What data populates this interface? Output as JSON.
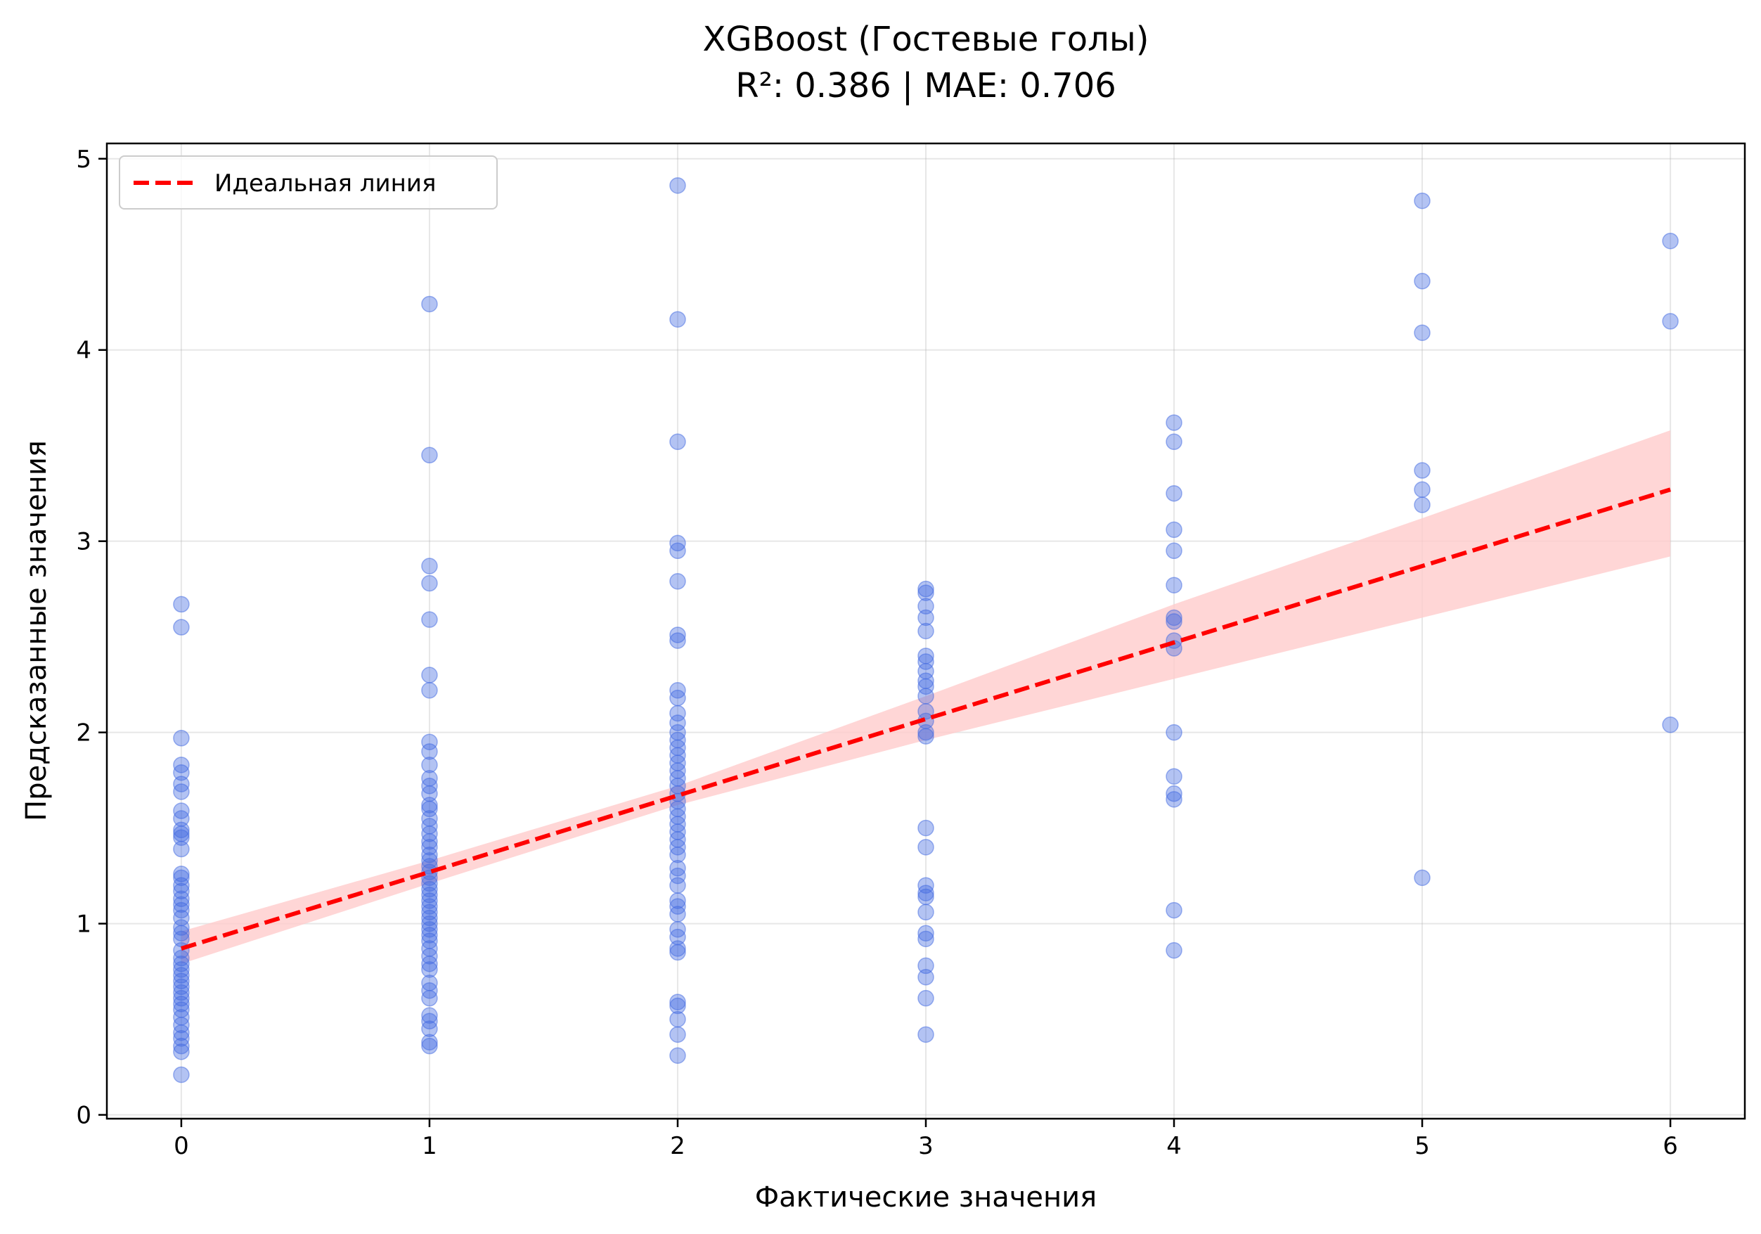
{
  "chart_data": {
    "type": "scatter",
    "title": "XGBoost (Гостевые голы)",
    "subtitle": "R²: 0.386 | MAE: 0.706",
    "xlabel": "Фактические значения",
    "ylabel": "Предсказанные значения",
    "xlim": [
      -0.3,
      6.3
    ],
    "ylim": [
      -0.02,
      5.08
    ],
    "x_ticks": [
      0,
      1,
      2,
      3,
      4,
      5,
      6
    ],
    "y_ticks": [
      0,
      1,
      2,
      3,
      4,
      5
    ],
    "grid": true,
    "legend": {
      "position": "top-left",
      "entries": [
        "Идеальная линия"
      ]
    },
    "colors": {
      "points": "#4169e1",
      "line": "#ff0000",
      "band": "#ffcccc"
    },
    "series": [
      {
        "type": "scatter",
        "points": [
          [
            0,
            2.67
          ],
          [
            0,
            2.55
          ],
          [
            0,
            1.97
          ],
          [
            0,
            1.83
          ],
          [
            0,
            1.79
          ],
          [
            0,
            1.73
          ],
          [
            0,
            1.69
          ],
          [
            0,
            1.59
          ],
          [
            0,
            1.55
          ],
          [
            0,
            1.49
          ],
          [
            0,
            1.47
          ],
          [
            0,
            1.45
          ],
          [
            0,
            1.39
          ],
          [
            0,
            1.26
          ],
          [
            0,
            1.24
          ],
          [
            0,
            1.2
          ],
          [
            0,
            1.17
          ],
          [
            0,
            1.13
          ],
          [
            0,
            1.1
          ],
          [
            0,
            1.07
          ],
          [
            0,
            1.03
          ],
          [
            0,
            0.98
          ],
          [
            0,
            0.95
          ],
          [
            0,
            0.92
          ],
          [
            0,
            0.86
          ],
          [
            0,
            0.82
          ],
          [
            0,
            0.79
          ],
          [
            0,
            0.76
          ],
          [
            0,
            0.73
          ],
          [
            0,
            0.7
          ],
          [
            0,
            0.67
          ],
          [
            0,
            0.64
          ],
          [
            0,
            0.61
          ],
          [
            0,
            0.58
          ],
          [
            0,
            0.55
          ],
          [
            0,
            0.51
          ],
          [
            0,
            0.47
          ],
          [
            0,
            0.43
          ],
          [
            0,
            0.4
          ],
          [
            0,
            0.36
          ],
          [
            0,
            0.33
          ],
          [
            0,
            0.21
          ],
          [
            1,
            4.24
          ],
          [
            1,
            3.45
          ],
          [
            1,
            2.87
          ],
          [
            1,
            2.78
          ],
          [
            1,
            2.59
          ],
          [
            1,
            2.3
          ],
          [
            1,
            2.22
          ],
          [
            1,
            1.95
          ],
          [
            1,
            1.9
          ],
          [
            1,
            1.83
          ],
          [
            1,
            1.76
          ],
          [
            1,
            1.72
          ],
          [
            1,
            1.68
          ],
          [
            1,
            1.62
          ],
          [
            1,
            1.6
          ],
          [
            1,
            1.55
          ],
          [
            1,
            1.51
          ],
          [
            1,
            1.47
          ],
          [
            1,
            1.43
          ],
          [
            1,
            1.4
          ],
          [
            1,
            1.36
          ],
          [
            1,
            1.33
          ],
          [
            1,
            1.3
          ],
          [
            1,
            1.27
          ],
          [
            1,
            1.24
          ],
          [
            1,
            1.21
          ],
          [
            1,
            1.18
          ],
          [
            1,
            1.15
          ],
          [
            1,
            1.12
          ],
          [
            1,
            1.09
          ],
          [
            1,
            1.06
          ],
          [
            1,
            1.03
          ],
          [
            1,
            1.0
          ],
          [
            1,
            0.97
          ],
          [
            1,
            0.94
          ],
          [
            1,
            0.91
          ],
          [
            1,
            0.87
          ],
          [
            1,
            0.83
          ],
          [
            1,
            0.79
          ],
          [
            1,
            0.76
          ],
          [
            1,
            0.69
          ],
          [
            1,
            0.65
          ],
          [
            1,
            0.61
          ],
          [
            1,
            0.52
          ],
          [
            1,
            0.49
          ],
          [
            1,
            0.45
          ],
          [
            1,
            0.38
          ],
          [
            1,
            0.36
          ],
          [
            2,
            4.86
          ],
          [
            2,
            4.16
          ],
          [
            2,
            3.52
          ],
          [
            2,
            2.99
          ],
          [
            2,
            2.95
          ],
          [
            2,
            2.79
          ],
          [
            2,
            2.51
          ],
          [
            2,
            2.48
          ],
          [
            2,
            2.22
          ],
          [
            2,
            2.18
          ],
          [
            2,
            2.1
          ],
          [
            2,
            2.05
          ],
          [
            2,
            2.0
          ],
          [
            2,
            1.96
          ],
          [
            2,
            1.92
          ],
          [
            2,
            1.88
          ],
          [
            2,
            1.84
          ],
          [
            2,
            1.8
          ],
          [
            2,
            1.76
          ],
          [
            2,
            1.72
          ],
          [
            2,
            1.68
          ],
          [
            2,
            1.64
          ],
          [
            2,
            1.6
          ],
          [
            2,
            1.56
          ],
          [
            2,
            1.52
          ],
          [
            2,
            1.48
          ],
          [
            2,
            1.44
          ],
          [
            2,
            1.4
          ],
          [
            2,
            1.36
          ],
          [
            2,
            1.29
          ],
          [
            2,
            1.25
          ],
          [
            2,
            1.2
          ],
          [
            2,
            1.12
          ],
          [
            2,
            1.09
          ],
          [
            2,
            1.05
          ],
          [
            2,
            0.97
          ],
          [
            2,
            0.93
          ],
          [
            2,
            0.87
          ],
          [
            2,
            0.85
          ],
          [
            2,
            0.59
          ],
          [
            2,
            0.57
          ],
          [
            2,
            0.5
          ],
          [
            2,
            0.42
          ],
          [
            2,
            0.31
          ],
          [
            3,
            2.75
          ],
          [
            3,
            2.73
          ],
          [
            3,
            2.66
          ],
          [
            3,
            2.6
          ],
          [
            3,
            2.53
          ],
          [
            3,
            2.4
          ],
          [
            3,
            2.37
          ],
          [
            3,
            2.32
          ],
          [
            3,
            2.27
          ],
          [
            3,
            2.24
          ],
          [
            3,
            2.19
          ],
          [
            3,
            2.11
          ],
          [
            3,
            2.06
          ],
          [
            3,
            2.0
          ],
          [
            3,
            1.98
          ],
          [
            3,
            1.5
          ],
          [
            3,
            1.4
          ],
          [
            3,
            1.2
          ],
          [
            3,
            1.16
          ],
          [
            3,
            1.14
          ],
          [
            3,
            1.06
          ],
          [
            3,
            0.95
          ],
          [
            3,
            0.92
          ],
          [
            3,
            0.78
          ],
          [
            3,
            0.72
          ],
          [
            3,
            0.61
          ],
          [
            3,
            0.42
          ],
          [
            4,
            3.62
          ],
          [
            4,
            3.52
          ],
          [
            4,
            3.25
          ],
          [
            4,
            3.06
          ],
          [
            4,
            2.95
          ],
          [
            4,
            2.77
          ],
          [
            4,
            2.6
          ],
          [
            4,
            2.58
          ],
          [
            4,
            2.48
          ],
          [
            4,
            2.44
          ],
          [
            4,
            2.0
          ],
          [
            4,
            1.77
          ],
          [
            4,
            1.68
          ],
          [
            4,
            1.65
          ],
          [
            4,
            1.07
          ],
          [
            4,
            0.86
          ],
          [
            5,
            4.78
          ],
          [
            5,
            4.36
          ],
          [
            5,
            4.09
          ],
          [
            5,
            3.37
          ],
          [
            5,
            3.27
          ],
          [
            5,
            3.19
          ],
          [
            5,
            1.24
          ],
          [
            6,
            4.57
          ],
          [
            6,
            4.15
          ],
          [
            6,
            2.04
          ]
        ]
      },
      {
        "type": "line",
        "name": "Идеальная линия",
        "x": [
          0,
          6
        ],
        "y": [
          0.87,
          3.27
        ]
      },
      {
        "type": "band",
        "x": [
          0,
          1,
          2,
          3,
          4,
          5,
          6
        ],
        "lower": [
          0.79,
          1.21,
          1.62,
          1.96,
          2.28,
          2.6,
          2.92
        ],
        "upper": [
          0.96,
          1.33,
          1.72,
          2.19,
          2.67,
          3.12,
          3.58
        ]
      }
    ]
  }
}
